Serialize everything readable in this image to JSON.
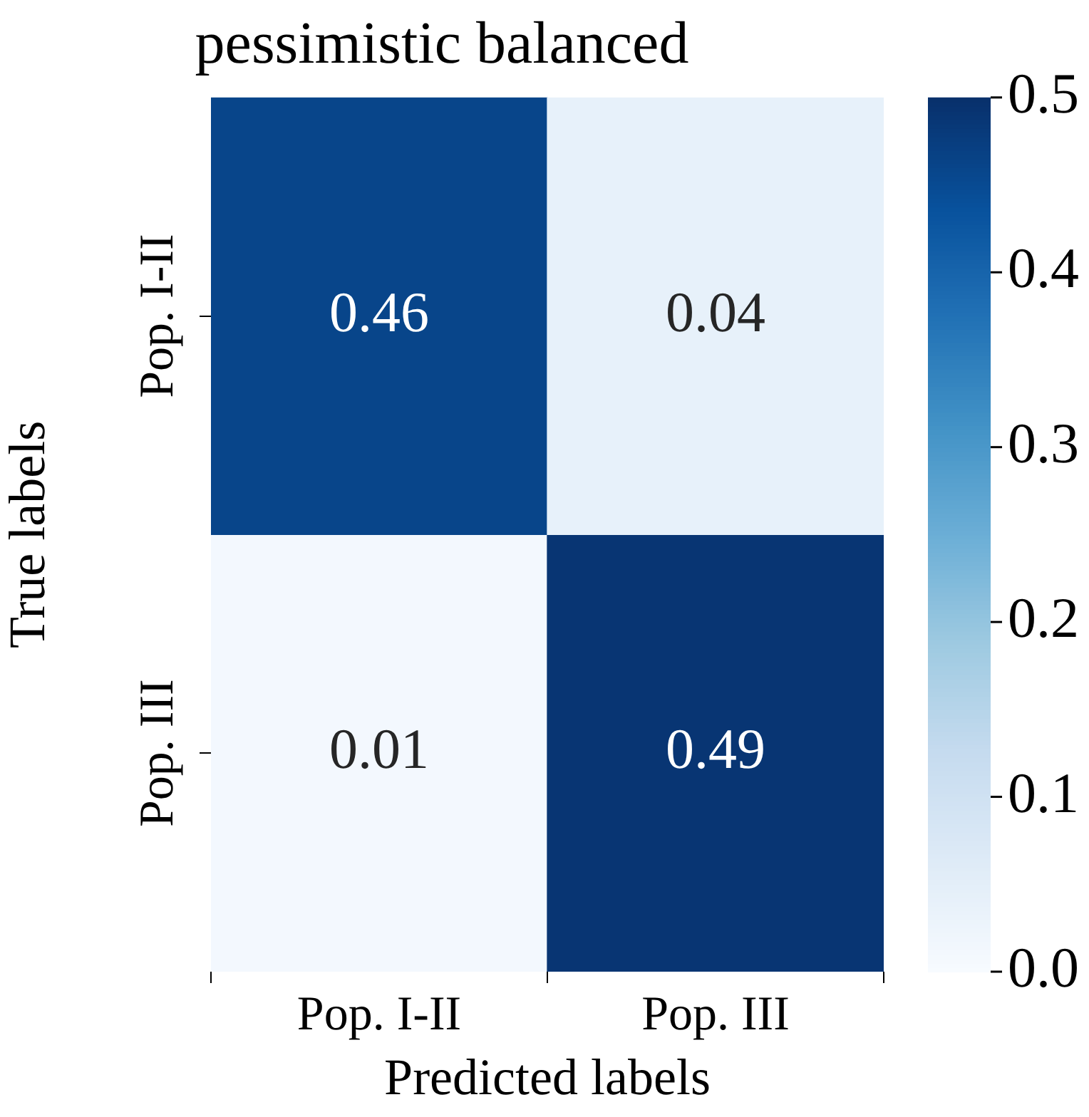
{
  "chart_data": {
    "type": "heatmap",
    "title": "pessimistic balanced",
    "xlabel": "Predicted labels",
    "ylabel": "True labels",
    "categories": [
      "Pop. I-II",
      "Pop. III"
    ],
    "y_categories": [
      "Pop. I-II",
      "Pop. III"
    ],
    "cells": [
      [
        0.46,
        0.04
      ],
      [
        0.01,
        0.49
      ]
    ],
    "clim": [
      0,
      0.5
    ],
    "cticks": [
      {
        "value": 0,
        "label": "0.0"
      },
      0.1,
      0.2,
      0.3,
      0.4,
      0.5
    ],
    "data_labels": true
  }
}
